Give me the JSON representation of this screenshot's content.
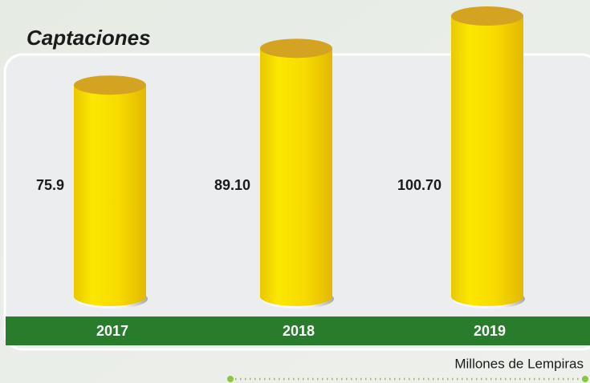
{
  "chart_data": {
    "type": "bar",
    "title": "Captaciones",
    "categories": [
      "2017",
      "2018",
      "2019"
    ],
    "values": [
      75.9,
      89.1,
      100.7
    ],
    "value_labels": [
      "75.9",
      "89.10",
      "100.70"
    ],
    "color": "#f7df00",
    "note": "Millones de Lempiras"
  }
}
